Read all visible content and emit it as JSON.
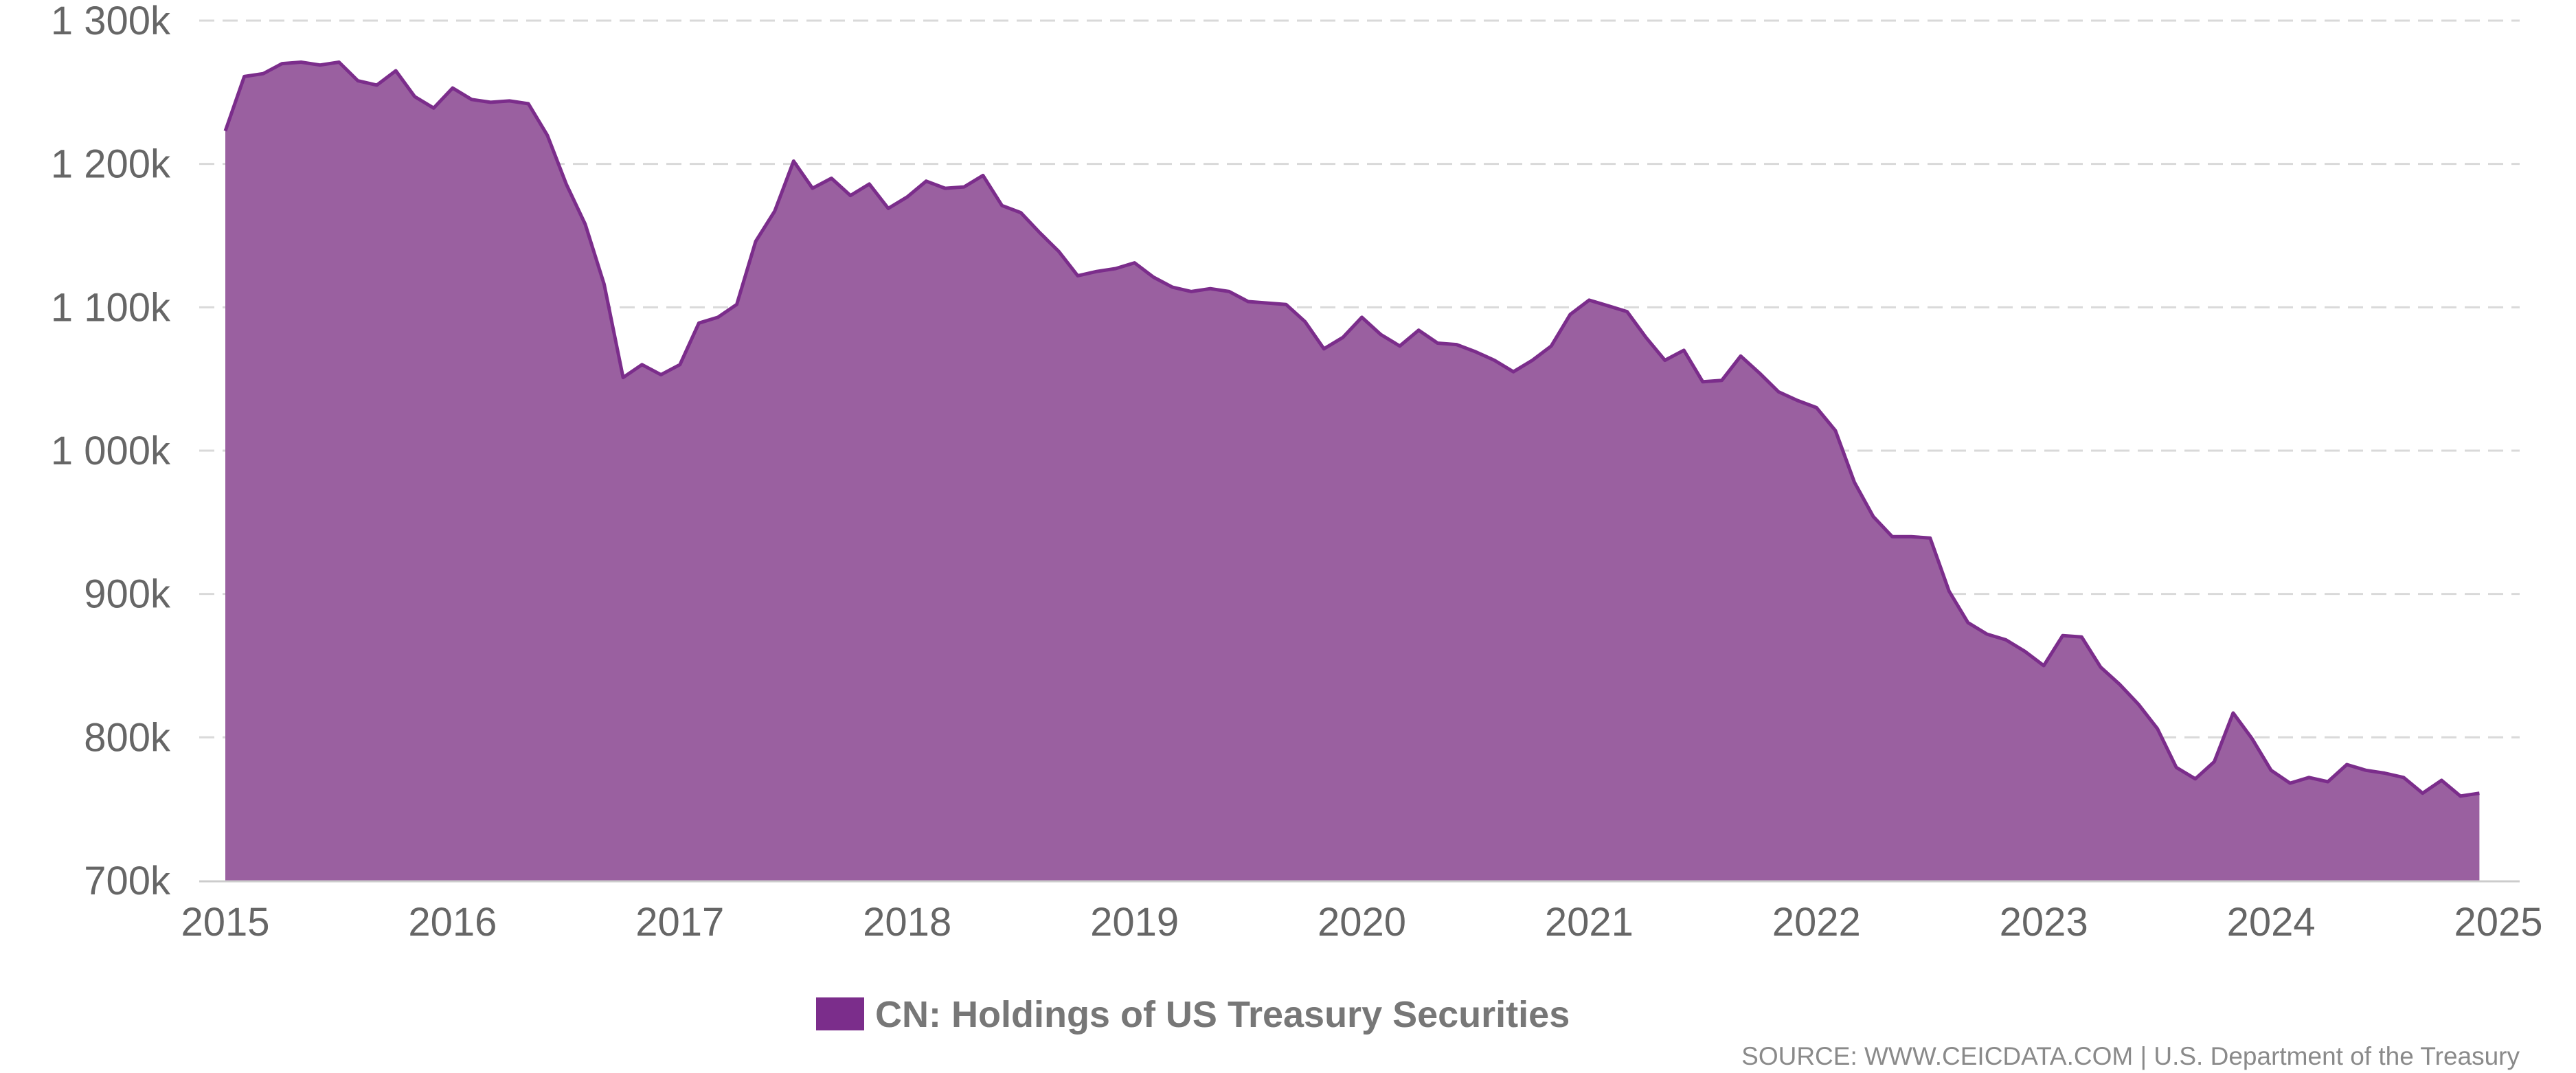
{
  "chart_data": {
    "type": "area",
    "title": "",
    "xlabel": "",
    "ylabel": "",
    "series": [
      {
        "name": "CN: Holdings of US Treasury Securities",
        "x": [
          "2015-01",
          "2015-02",
          "2015-03",
          "2015-04",
          "2015-05",
          "2015-06",
          "2015-07",
          "2015-08",
          "2015-09",
          "2015-10",
          "2015-11",
          "2015-12",
          "2016-01",
          "2016-02",
          "2016-03",
          "2016-04",
          "2016-05",
          "2016-06",
          "2016-07",
          "2016-08",
          "2016-09",
          "2016-10",
          "2016-11",
          "2016-12",
          "2017-01",
          "2017-02",
          "2017-03",
          "2017-04",
          "2017-05",
          "2017-06",
          "2017-07",
          "2017-08",
          "2017-09",
          "2017-10",
          "2017-11",
          "2017-12",
          "2018-01",
          "2018-02",
          "2018-03",
          "2018-04",
          "2018-05",
          "2018-06",
          "2018-07",
          "2018-08",
          "2018-09",
          "2018-10",
          "2018-11",
          "2018-12",
          "2019-01",
          "2019-02",
          "2019-03",
          "2019-04",
          "2019-05",
          "2019-06",
          "2019-07",
          "2019-08",
          "2019-09",
          "2019-10",
          "2019-11",
          "2019-12",
          "2020-01",
          "2020-02",
          "2020-03",
          "2020-04",
          "2020-05",
          "2020-06",
          "2020-07",
          "2020-08",
          "2020-09",
          "2020-10",
          "2020-11",
          "2020-12",
          "2021-01",
          "2021-02",
          "2021-03",
          "2021-04",
          "2021-05",
          "2021-06",
          "2021-07",
          "2021-08",
          "2021-09",
          "2021-10",
          "2021-11",
          "2021-12",
          "2022-01",
          "2022-02",
          "2022-03",
          "2022-04",
          "2022-05",
          "2022-06",
          "2022-07",
          "2022-08",
          "2022-09",
          "2022-10",
          "2022-11",
          "2022-12",
          "2023-01",
          "2023-02",
          "2023-03",
          "2023-04",
          "2023-05",
          "2023-06",
          "2023-07",
          "2023-08",
          "2023-09",
          "2023-10",
          "2023-11",
          "2023-12",
          "2024-01",
          "2024-02",
          "2024-03",
          "2024-04",
          "2024-05",
          "2024-06",
          "2024-07",
          "2024-08",
          "2024-09",
          "2024-10",
          "2024-11",
          "2024-12"
        ],
        "values": [
          1223,
          1261,
          1263,
          1270,
          1271,
          1269,
          1271,
          1258,
          1255,
          1265,
          1247,
          1239,
          1253,
          1245,
          1243,
          1244,
          1242,
          1220,
          1186,
          1158,
          1116,
          1051,
          1060,
          1053,
          1060,
          1089,
          1093,
          1102,
          1146,
          1167,
          1202,
          1183,
          1190,
          1178,
          1186,
          1169,
          1177,
          1188,
          1183,
          1184,
          1192,
          1171,
          1166,
          1152,
          1139,
          1122,
          1125,
          1127,
          1131,
          1121,
          1114,
          1111,
          1113,
          1111,
          1104,
          1103,
          1102,
          1090,
          1071,
          1079,
          1093,
          1081,
          1073,
          1084,
          1075,
          1074,
          1069,
          1063,
          1055,
          1063,
          1073,
          1095,
          1105,
          1101,
          1097,
          1079,
          1063,
          1070,
          1048,
          1049,
          1066,
          1054,
          1041,
          1035,
          1030,
          1014,
          978,
          954,
          940,
          940,
          939,
          902,
          880,
          872,
          868,
          860,
          850,
          871,
          870,
          849,
          837,
          823,
          806,
          779,
          771,
          783,
          817,
          799,
          777,
          768,
          772,
          769,
          781,
          777,
          775,
          772,
          761,
          770,
          759,
          761
        ]
      }
    ],
    "y_tick_labels": [
      "700k",
      "800k",
      "900k",
      "1 000k",
      "1 100k",
      "1 200k",
      "1 300k"
    ],
    "x_tick_labels": [
      "2015",
      "2016",
      "2017",
      "2018",
      "2019",
      "2020",
      "2021",
      "2022",
      "2023",
      "2024",
      "2025"
    ],
    "ylim": [
      700,
      1300
    ],
    "y_unit": "k",
    "grid": true,
    "legend_position": "bottom-center",
    "colors": {
      "line": "#7b2d8b",
      "fill": "#9a60a0",
      "grid": "#d9d9d9",
      "axis_text": "#666666"
    }
  },
  "source_text": "SOURCE: WWW.CEICDATA.COM | U.S. Department of the Treasury"
}
